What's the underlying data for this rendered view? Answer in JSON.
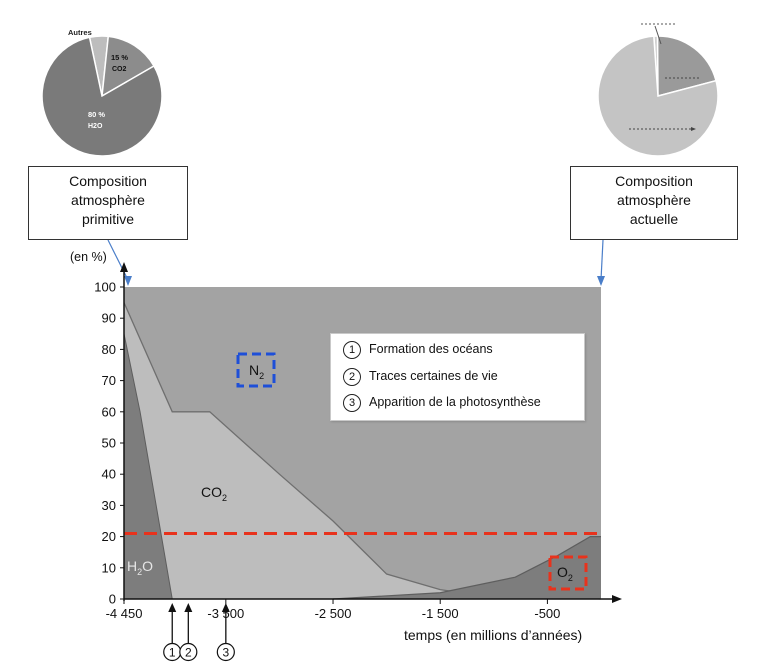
{
  "pies": {
    "primitive": {
      "slices": [
        {
          "label": "Autres",
          "percent": 5,
          "color": "#bdbdbd"
        },
        {
          "label": "15 %",
          "sub": "CO2",
          "percent": 15,
          "color": "#8c8c8c"
        },
        {
          "label": "80 %",
          "sub": "H2O",
          "percent": 80,
          "color": "#7a7a7a"
        }
      ]
    },
    "current": {
      "slices": [
        {
          "label": "",
          "percent": 1,
          "color": "#d0d0d0"
        },
        {
          "label": "",
          "percent": 21,
          "color": "#9a9a9a"
        },
        {
          "label": "",
          "percent": 78,
          "color": "#c4c4c4"
        }
      ]
    }
  },
  "captions": {
    "left": [
      "Composition",
      "atmosphère",
      "primitive"
    ],
    "right": [
      "Composition",
      "atmosphère",
      "actuelle"
    ]
  },
  "chart_data": {
    "type": "area",
    "ylabel": "(en %)",
    "xlabel": "temps (en millions d’années)",
    "ylim": [
      0,
      100
    ],
    "xlim": [
      -4450,
      0
    ],
    "yticks": [
      "0",
      "10",
      "20",
      "30",
      "40",
      "50",
      "60",
      "70",
      "80",
      "90",
      "100"
    ],
    "xticks": [
      {
        "value": -4450,
        "label": "-4 450"
      },
      {
        "value": -3500,
        "label": "-3 500"
      },
      {
        "value": -2500,
        "label": "-2 500"
      },
      {
        "value": -1500,
        "label": "-1 500"
      },
      {
        "value": -500,
        "label": "-500"
      }
    ],
    "series": [
      {
        "name": "H2O",
        "label": "H",
        "color": "#7d7d7d",
        "x": [
          -4450,
          -4300,
          -4000,
          -4000
        ],
        "y": [
          85,
          60,
          0,
          0
        ]
      },
      {
        "name": "CO2",
        "label": "CO",
        "color": "#bdbdbd",
        "x": [
          -4450,
          -4000,
          -3650,
          -3000,
          -2500,
          -2000,
          -1500,
          -1300,
          0
        ],
        "y": [
          95,
          60,
          60,
          40,
          25,
          8,
          3,
          2,
          0
        ]
      },
      {
        "name": "O2",
        "label": "O",
        "color": "#7d7d7d",
        "x": [
          -2500,
          -1500,
          -800,
          -400,
          -100,
          0
        ],
        "y": [
          0,
          2,
          7,
          14,
          20,
          20
        ]
      },
      {
        "name": "N2",
        "label": "N",
        "color": "#a3a3a3"
      }
    ],
    "reference_line": {
      "y": 21,
      "color": "#e8321c"
    },
    "highlight_boxes": [
      {
        "target": "N2",
        "color": "#1e4fd8"
      },
      {
        "target": "O2",
        "color": "#e8321c"
      }
    ],
    "markers": [
      {
        "num": "1",
        "x": -4000
      },
      {
        "num": "2",
        "x": -3850
      },
      {
        "num": "3",
        "x": -3500
      }
    ]
  },
  "legend": [
    {
      "num": "1",
      "text": "Formation des océans"
    },
    {
      "num": "2",
      "text": "Traces certaines de vie"
    },
    {
      "num": "3",
      "text": "Apparition de la photosynthèse"
    }
  ]
}
